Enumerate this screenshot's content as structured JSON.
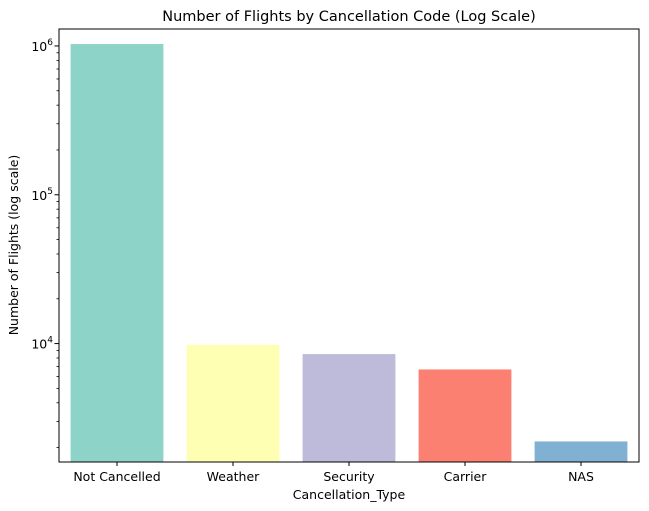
{
  "chart_data": {
    "type": "bar",
    "title": "Number of Flights by Cancellation Code (Log Scale)",
    "xlabel": "Cancellation_Type",
    "ylabel": "Number of Flights (log scale)",
    "y_scale": "log",
    "ylim": [
      1600,
      1300000
    ],
    "y_ticks": [
      {
        "value": 1000000,
        "base": "10",
        "exp": "6"
      },
      {
        "value": 100000,
        "base": "10",
        "exp": "5"
      },
      {
        "value": 10000,
        "base": "10",
        "exp": "4"
      }
    ],
    "categories": [
      "Not Cancelled",
      "Weather",
      "Security",
      "Carrier",
      "NAS"
    ],
    "values": [
      1030000,
      9800,
      8500,
      6700,
      2200
    ],
    "colors": [
      "#8dd3c7",
      "#ffffb3",
      "#bebada",
      "#fb8072",
      "#80b1d3"
    ],
    "grid": false,
    "legend": "none"
  }
}
